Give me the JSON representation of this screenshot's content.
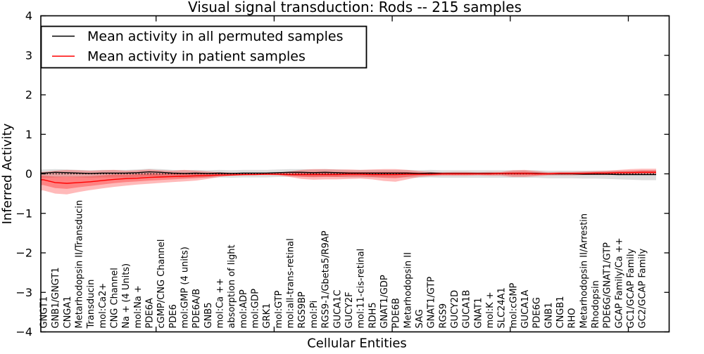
{
  "chart_data": {
    "type": "line",
    "title": "Visual signal transduction: Rods -- 215 samples",
    "xlabel": "Cellular Entities",
    "ylabel": "Inferred Activity",
    "ylim": [
      -4,
      4
    ],
    "yticklabels": [
      "4",
      "3",
      "2",
      "1",
      "0",
      "−1",
      "−2",
      "−3",
      "−4"
    ],
    "grid": false,
    "legend_position": "upper left",
    "zero_line": "dotted",
    "colors": {
      "permuted": "#000000",
      "patient": "#ff0000",
      "patient_band": "#ff0000",
      "permuted_band": "#000000"
    },
    "categories": [
      "GNGT1",
      "GNB1/GNGT1",
      "CNGA1",
      "Metarhodopsin II/Transducin",
      "Transducin",
      "mol:Ca2+",
      "CNG Channel",
      "Na + (4 Units)",
      "mol:Na +",
      "PDE6A",
      "cGMP/CNG Channel",
      "PDE6",
      "mol:GMP (4 units)",
      "PDE6A/B",
      "GNB5",
      "mol:Ca ++",
      "absorption of light",
      "mol:ADP",
      "mol:GDP",
      "GRK1",
      "mol:GTP",
      "mol:all-trans-retinal",
      "RGS9BP",
      "mol:Pi",
      "RGS9-1/Gbeta5/R9AP",
      "GUCA1C",
      "GUCY2F",
      "mol:11-cis-retinal",
      "RDH5",
      "GNAT1/GDP",
      "PDE6B",
      "Metarhodopsin II",
      "SAG",
      "GNAT1/GTP",
      "RGS9",
      "GUCY2D",
      "GUCA1B",
      "GNAT1",
      "mol:K +",
      "SLC24A1",
      "mol:cGMP",
      "GUCA1A",
      "PDE6G",
      "GNB1",
      "CNGB1",
      "RHO",
      "Metarhodopsin II/Arrestin",
      "Rhodopsin",
      "PDE6G/GNAT1/GTP",
      "GCAP Family/Ca ++",
      "GC1/GCAP Family",
      "GC2/GCAP Family"
    ],
    "series": [
      {
        "name": "Mean activity in all permuted samples",
        "color": "#000000",
        "values": [
          0.02,
          0.04,
          0.03,
          0.02,
          0.01,
          0.02,
          0.02,
          0.02,
          0.03,
          0.05,
          0.04,
          0.02,
          0.01,
          0.02,
          0.01,
          0.02,
          0.01,
          0.02,
          0.02,
          0.02,
          0.03,
          0.04,
          0.04,
          0.03,
          0.04,
          0.03,
          0.02,
          0.02,
          0.02,
          0.02,
          0.02,
          0.02,
          0.01,
          0.02,
          0.01,
          0.01,
          0.01,
          0.01,
          0.01,
          0.01,
          0.01,
          0.01,
          0.01,
          0.0,
          0.0,
          0.0,
          -0.01,
          -0.01,
          -0.01,
          -0.02,
          -0.02,
          -0.02
        ],
        "band_hi": [
          0.11,
          0.12,
          0.11,
          0.1,
          0.09,
          0.1,
          0.1,
          0.1,
          0.11,
          0.13,
          0.12,
          0.1,
          0.09,
          0.1,
          0.09,
          0.1,
          0.09,
          0.1,
          0.1,
          0.1,
          0.11,
          0.12,
          0.12,
          0.11,
          0.12,
          0.11,
          0.1,
          0.1,
          0.1,
          0.1,
          0.1,
          0.1,
          0.09,
          0.1,
          0.09,
          0.09,
          0.09,
          0.09,
          0.09,
          0.09,
          0.09,
          0.09,
          0.09,
          0.08,
          0.08,
          0.08,
          0.08,
          0.08,
          0.08,
          0.08,
          0.08,
          0.09
        ],
        "band_lo": [
          -0.1,
          -0.09,
          -0.08,
          -0.09,
          -0.1,
          -0.09,
          -0.09,
          -0.09,
          -0.08,
          -0.06,
          -0.07,
          -0.09,
          -0.1,
          -0.09,
          -0.1,
          -0.09,
          -0.1,
          -0.09,
          -0.09,
          -0.09,
          -0.08,
          -0.07,
          -0.07,
          -0.08,
          -0.07,
          -0.08,
          -0.09,
          -0.09,
          -0.09,
          -0.09,
          -0.09,
          -0.09,
          -0.1,
          -0.09,
          -0.1,
          -0.1,
          -0.1,
          -0.1,
          -0.1,
          -0.1,
          -0.1,
          -0.1,
          -0.1,
          -0.11,
          -0.11,
          -0.11,
          -0.12,
          -0.12,
          -0.13,
          -0.14,
          -0.15,
          -0.16
        ]
      },
      {
        "name": "Mean activity in patient samples",
        "color": "#ff0000",
        "values": [
          -0.15,
          -0.22,
          -0.24,
          -0.22,
          -0.2,
          -0.17,
          -0.14,
          -0.12,
          -0.11,
          -0.09,
          -0.08,
          -0.07,
          -0.06,
          -0.05,
          -0.04,
          -0.03,
          -0.03,
          -0.02,
          -0.02,
          -0.01,
          -0.01,
          -0.02,
          -0.02,
          -0.02,
          -0.02,
          -0.02,
          -0.01,
          -0.01,
          -0.02,
          -0.02,
          -0.02,
          -0.01,
          -0.01,
          -0.01,
          0.0,
          0.0,
          0.0,
          0.0,
          0.0,
          0.01,
          0.01,
          0.01,
          0.0,
          0.0,
          0.01,
          0.01,
          0.01,
          0.02,
          0.02,
          0.03,
          0.03,
          0.04
        ],
        "band_hi": [
          0.05,
          0.08,
          0.1,
          0.09,
          0.08,
          0.09,
          0.1,
          0.08,
          0.09,
          0.11,
          0.09,
          0.08,
          0.1,
          0.08,
          0.06,
          0.04,
          0.03,
          0.02,
          0.02,
          0.02,
          0.03,
          0.06,
          0.1,
          0.12,
          0.12,
          0.11,
          0.11,
          0.1,
          0.11,
          0.12,
          0.12,
          0.1,
          0.07,
          0.05,
          0.04,
          0.05,
          0.05,
          0.04,
          0.05,
          0.05,
          0.09,
          0.1,
          0.07,
          0.04,
          0.05,
          0.05,
          0.06,
          0.07,
          0.08,
          0.1,
          0.12,
          0.13
        ],
        "band_lo": [
          -0.42,
          -0.5,
          -0.52,
          -0.46,
          -0.41,
          -0.37,
          -0.33,
          -0.3,
          -0.27,
          -0.25,
          -0.23,
          -0.21,
          -0.19,
          -0.17,
          -0.13,
          -0.08,
          -0.05,
          -0.04,
          -0.03,
          -0.03,
          -0.04,
          -0.08,
          -0.13,
          -0.15,
          -0.14,
          -0.14,
          -0.13,
          -0.12,
          -0.14,
          -0.18,
          -0.2,
          -0.14,
          -0.08,
          -0.06,
          -0.05,
          -0.05,
          -0.05,
          -0.04,
          -0.05,
          -0.05,
          -0.08,
          -0.08,
          -0.06,
          -0.04,
          -0.04,
          -0.04,
          -0.03,
          -0.03,
          -0.03,
          -0.03,
          -0.02,
          -0.02
        ]
      }
    ]
  }
}
